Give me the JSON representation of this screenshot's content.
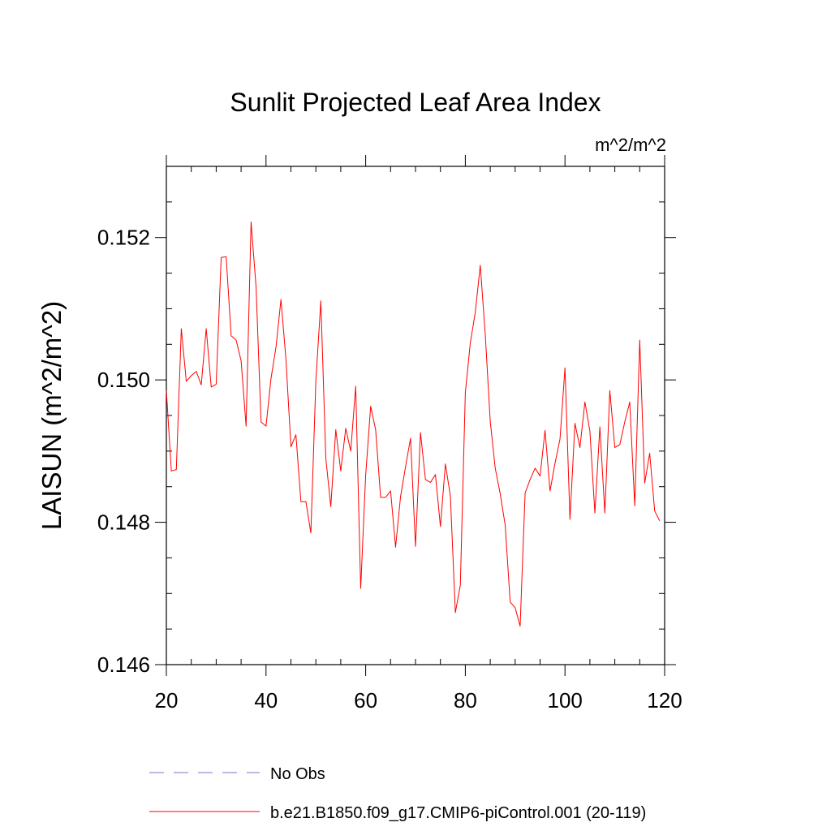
{
  "chart_data": {
    "type": "line",
    "title": "Sunlit Projected Leaf Area Index",
    "units_label": "m^2/m^2",
    "ylabel": "LAISUN  (m^2/m^2)",
    "xlabel": "",
    "xlim": [
      20,
      120
    ],
    "ylim": [
      0.146,
      0.153
    ],
    "x_ticks": [
      20,
      40,
      60,
      80,
      100,
      120
    ],
    "x_tick_labels": [
      "20",
      "40",
      "60",
      "80",
      "100",
      "120"
    ],
    "y_ticks": [
      0.146,
      0.148,
      0.15,
      0.152
    ],
    "y_tick_labels": [
      "0.146",
      "0.148",
      "0.150",
      "0.152"
    ],
    "grid": false,
    "legend_position": "bottom",
    "series": [
      {
        "name": "No Obs",
        "color": "#7a73c9",
        "dash": "dashed",
        "x": [],
        "y": []
      },
      {
        "name": "b.e21.B1850.f09_g17.CMIP6-piControl.001 (20-119)",
        "color": "#ff0000",
        "dash": "solid",
        "x": [
          20,
          21,
          22,
          23,
          24,
          25,
          26,
          27,
          28,
          29,
          30,
          31,
          32,
          33,
          34,
          35,
          36,
          37,
          38,
          39,
          40,
          41,
          42,
          43,
          44,
          45,
          46,
          47,
          48,
          49,
          50,
          51,
          52,
          53,
          54,
          55,
          56,
          57,
          58,
          59,
          60,
          61,
          62,
          63,
          64,
          65,
          66,
          67,
          68,
          69,
          70,
          71,
          72,
          73,
          74,
          75,
          76,
          77,
          78,
          79,
          80,
          81,
          82,
          83,
          84,
          85,
          86,
          87,
          88,
          89,
          90,
          91,
          92,
          93,
          94,
          95,
          96,
          97,
          98,
          99,
          100,
          101,
          102,
          103,
          104,
          105,
          106,
          107,
          108,
          109,
          110,
          111,
          112,
          113,
          114,
          115,
          116,
          117,
          118,
          119
        ],
        "y": [
          0.14985,
          0.14872,
          0.14874,
          0.15072,
          0.14998,
          0.15006,
          0.15012,
          0.14993,
          0.15072,
          0.1499,
          0.14994,
          0.15172,
          0.15173,
          0.15062,
          0.15056,
          0.15027,
          0.14935,
          0.15222,
          0.15131,
          0.14941,
          0.14935,
          0.15002,
          0.15046,
          0.15113,
          0.15029,
          0.14906,
          0.14923,
          0.14829,
          0.14829,
          0.14785,
          0.14998,
          0.15111,
          0.1489,
          0.14822,
          0.1493,
          0.14872,
          0.14932,
          0.149,
          0.14991,
          0.14707,
          0.14866,
          0.14963,
          0.1493,
          0.14835,
          0.14835,
          0.14844,
          0.14765,
          0.14836,
          0.14878,
          0.14918,
          0.14766,
          0.14926,
          0.1486,
          0.14856,
          0.14867,
          0.14794,
          0.14882,
          0.14837,
          0.14673,
          0.14712,
          0.14982,
          0.15052,
          0.15095,
          0.15161,
          0.15064,
          0.14942,
          0.14876,
          0.1484,
          0.14796,
          0.14688,
          0.1468,
          0.14654,
          0.14841,
          0.1486,
          0.14876,
          0.14865,
          0.14929,
          0.14844,
          0.14883,
          0.14917,
          0.15017,
          0.14804,
          0.14939,
          0.14905,
          0.14969,
          0.14928,
          0.14813,
          0.14934,
          0.14813,
          0.14985,
          0.14905,
          0.14909,
          0.14941,
          0.14969,
          0.14823,
          0.15056,
          0.14855,
          0.14897,
          0.14816,
          0.14802
        ]
      }
    ]
  }
}
